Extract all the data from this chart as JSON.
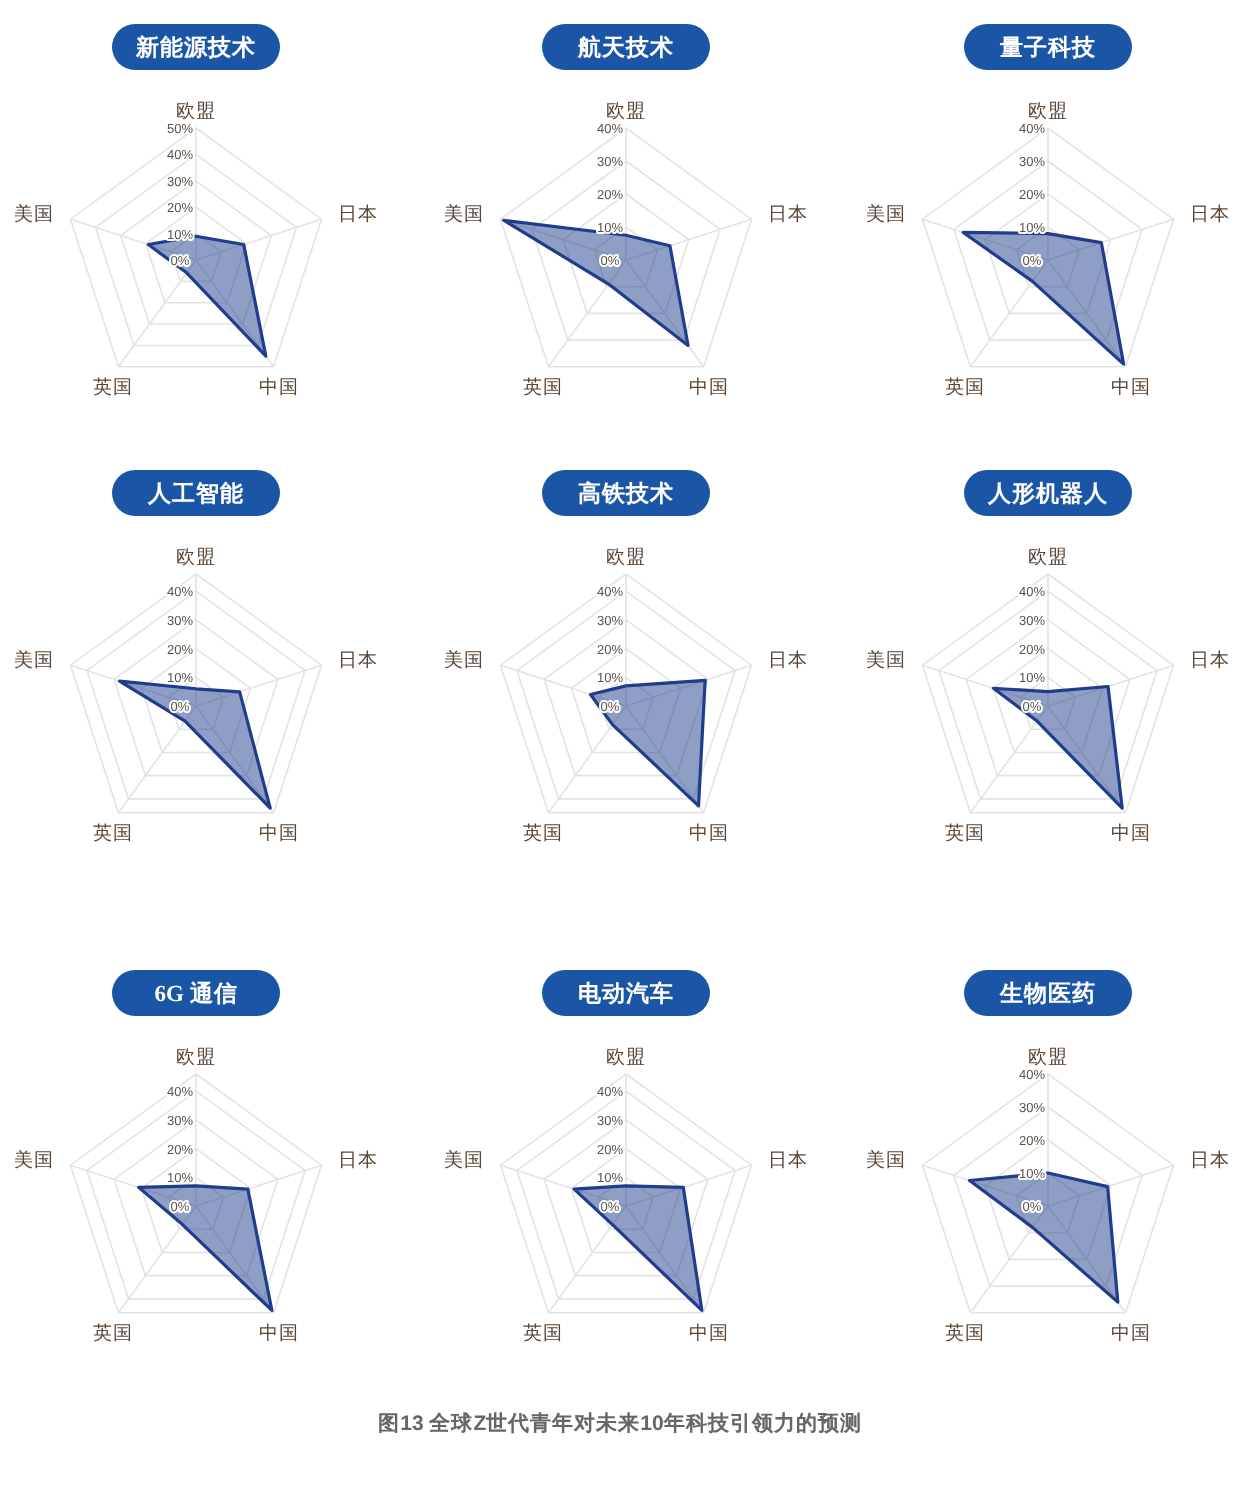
{
  "chart_data": [
    {
      "type": "radar",
      "title": "新能源技术",
      "categories": [
        "欧盟",
        "日本",
        "中国",
        "英国",
        "美国"
      ],
      "series": [
        {
          "color": "#1f3d8c",
          "values": [
            9,
            19,
            45,
            6,
            19
          ]
        }
      ],
      "ylim": [
        0,
        50
      ],
      "yticks": [
        {
          "value": 0,
          "label": "0%"
        },
        {
          "value": 10,
          "label": "10%"
        },
        {
          "value": 20,
          "label": "20%"
        },
        {
          "value": 30,
          "label": "30%"
        },
        {
          "value": 40,
          "label": "40%"
        },
        {
          "value": 50,
          "label": "50%"
        }
      ],
      "grid": true
    },
    {
      "type": "radar",
      "title": "航天技术",
      "categories": [
        "欧盟",
        "日本",
        "中国",
        "英国",
        "美国"
      ],
      "series": [
        {
          "color": "#1f3d8c",
          "values": [
            7.5,
            14,
            32,
            9,
            39
          ]
        }
      ],
      "ylim": [
        0,
        40
      ],
      "yticks": [
        {
          "value": 0,
          "label": "0%"
        },
        {
          "value": 10,
          "label": "10%"
        },
        {
          "value": 20,
          "label": "20%"
        },
        {
          "value": 30,
          "label": "30%"
        },
        {
          "value": 40,
          "label": "40%"
        }
      ],
      "grid": true
    },
    {
      "type": "radar",
      "title": "量子科技",
      "categories": [
        "欧盟",
        "日本",
        "中国",
        "英国",
        "美国"
      ],
      "series": [
        {
          "color": "#1f3d8c",
          "values": [
            8,
            17,
            39,
            8,
            27
          ]
        }
      ],
      "ylim": [
        0,
        40
      ],
      "yticks": [
        {
          "value": 0,
          "label": "0%"
        },
        {
          "value": 10,
          "label": "10%"
        },
        {
          "value": 20,
          "label": "20%"
        },
        {
          "value": 30,
          "label": "30%"
        },
        {
          "value": 40,
          "label": "40%"
        }
      ],
      "grid": true
    },
    {
      "type": "radar",
      "title": "人工智能",
      "categories": [
        "欧盟",
        "日本",
        "中国",
        "英国",
        "美国"
      ],
      "series": [
        {
          "color": "#1f3d8c",
          "values": [
            6,
            16,
            44,
            6.5,
            28
          ]
        }
      ],
      "ylim": [
        0,
        46
      ],
      "yticks": [
        {
          "value": 0,
          "label": "0%"
        },
        {
          "value": 10,
          "label": "10%"
        },
        {
          "value": 20,
          "label": "20%"
        },
        {
          "value": 30,
          "label": "30%"
        },
        {
          "value": 40,
          "label": "40%"
        }
      ],
      "grid": true
    },
    {
      "type": "radar",
      "title": "高铁技术",
      "categories": [
        "欧盟",
        "日本",
        "中国",
        "英国",
        "美国"
      ],
      "series": [
        {
          "color": "#1f3d8c",
          "values": [
            7,
            29,
            43,
            8,
            13
          ]
        }
      ],
      "ylim": [
        0,
        46
      ],
      "yticks": [
        {
          "value": 0,
          "label": "0%"
        },
        {
          "value": 10,
          "label": "10%"
        },
        {
          "value": 20,
          "label": "20%"
        },
        {
          "value": 30,
          "label": "30%"
        },
        {
          "value": 40,
          "label": "40%"
        }
      ],
      "grid": true
    },
    {
      "type": "radar",
      "title": "人形机器人",
      "categories": [
        "欧盟",
        "日本",
        "中国",
        "英国",
        "美国"
      ],
      "series": [
        {
          "color": "#1f3d8c",
          "values": [
            5,
            22,
            44,
            6.5,
            20
          ]
        }
      ],
      "ylim": [
        0,
        46
      ],
      "yticks": [
        {
          "value": 0,
          "label": "0%"
        },
        {
          "value": 10,
          "label": "10%"
        },
        {
          "value": 20,
          "label": "20%"
        },
        {
          "value": 30,
          "label": "30%"
        },
        {
          "value": 40,
          "label": "40%"
        }
      ],
      "grid": true
    },
    {
      "type": "radar",
      "title": "6G 通信",
      "categories": [
        "欧盟",
        "日本",
        "中国",
        "英国",
        "美国"
      ],
      "series": [
        {
          "color": "#1f3d8c",
          "values": [
            7,
            19,
            45,
            8,
            21
          ]
        }
      ],
      "ylim": [
        0,
        46
      ],
      "yticks": [
        {
          "value": 0,
          "label": "0%"
        },
        {
          "value": 10,
          "label": "10%"
        },
        {
          "value": 20,
          "label": "20%"
        },
        {
          "value": 30,
          "label": "30%"
        },
        {
          "value": 40,
          "label": "40%"
        }
      ],
      "grid": true
    },
    {
      "type": "radar",
      "title": "电动汽车",
      "categories": [
        "欧盟",
        "日本",
        "中国",
        "英国",
        "美国"
      ],
      "series": [
        {
          "color": "#1f3d8c",
          "values": [
            7,
            21,
            45,
            8,
            19
          ]
        }
      ],
      "ylim": [
        0,
        46
      ],
      "yticks": [
        {
          "value": 0,
          "label": "0%"
        },
        {
          "value": 10,
          "label": "10%"
        },
        {
          "value": 20,
          "label": "20%"
        },
        {
          "value": 30,
          "label": "30%"
        },
        {
          "value": 40,
          "label": "40%"
        }
      ],
      "grid": true
    },
    {
      "type": "radar",
      "title": "生物医药",
      "categories": [
        "欧盟",
        "日本",
        "中国",
        "英国",
        "美国"
      ],
      "series": [
        {
          "color": "#1f3d8c",
          "values": [
            10,
            19,
            36,
            8,
            25
          ]
        }
      ],
      "ylim": [
        0,
        40
      ],
      "yticks": [
        {
          "value": 0,
          "label": "0%"
        },
        {
          "value": 10,
          "label": "10%"
        },
        {
          "value": 20,
          "label": "20%"
        },
        {
          "value": 30,
          "label": "30%"
        },
        {
          "value": 40,
          "label": "40%"
        }
      ],
      "grid": true,
      "annotations": [
        "图13 全球Z世代青年对未来10年科技引领力的预测"
      ]
    }
  ]
}
